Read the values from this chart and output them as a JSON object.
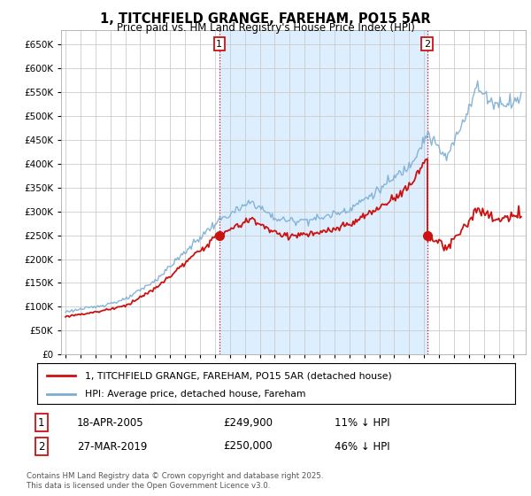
{
  "title": "1, TITCHFIELD GRANGE, FAREHAM, PO15 5AR",
  "subtitle": "Price paid vs. HM Land Registry's House Price Index (HPI)",
  "background_color": "#ffffff",
  "plot_bg_color": "#ffffff",
  "grid_color": "#cccccc",
  "hpi_color": "#7aadd4",
  "price_color": "#cc1111",
  "shaded_color": "#ddeeff",
  "annotation1_date": "18-APR-2005",
  "annotation1_price": 249900,
  "annotation1_label": "11% ↓ HPI",
  "annotation2_date": "27-MAR-2019",
  "annotation2_price": 250000,
  "annotation2_label": "46% ↓ HPI",
  "legend_label1": "1, TITCHFIELD GRANGE, FAREHAM, PO15 5AR (detached house)",
  "legend_label2": "HPI: Average price, detached house, Fareham",
  "footer": "Contains HM Land Registry data © Crown copyright and database right 2025.\nThis data is licensed under the Open Government Licence v3.0.",
  "ylim": [
    0,
    680000
  ],
  "yticks": [
    0,
    50000,
    100000,
    150000,
    200000,
    250000,
    300000,
    350000,
    400000,
    450000,
    500000,
    550000,
    600000,
    650000
  ],
  "purchase1_year": 2005,
  "purchase1_month": 4,
  "purchase1_price": 249900,
  "purchase2_year": 2019,
  "purchase2_month": 3,
  "purchase2_price": 250000
}
